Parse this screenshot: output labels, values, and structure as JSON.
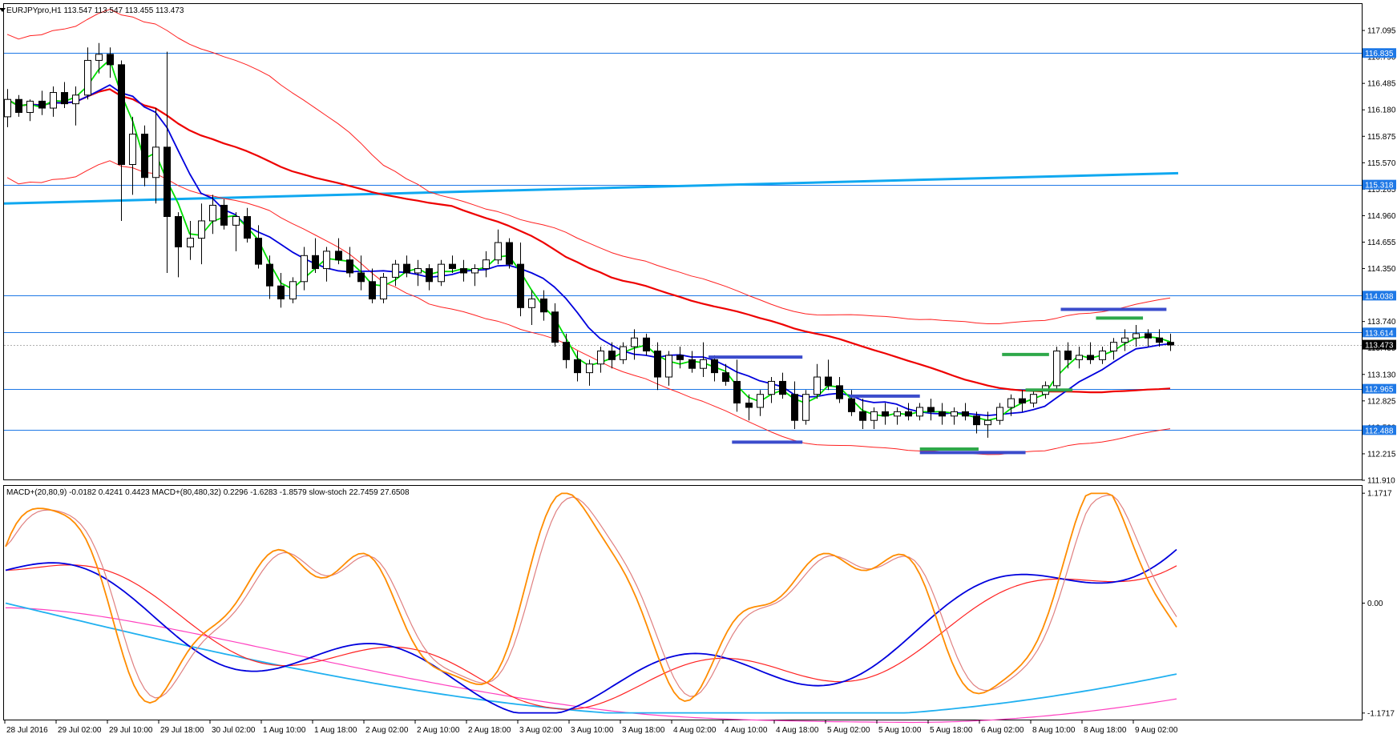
{
  "main_header": "EURJPYpro,H1  113.547 113.547 113.455 113.473",
  "indicator_header": "MACD+(20,80,9) -0.0182 0.4241 0.4423  MACD+(80,480,32) 0.2296 -1.6283 -1.8579  slow-stoch 22.7459 27.6508",
  "colors": {
    "candle_bull": "#ffffff",
    "candle_bear": "#000000",
    "ma_fast": "#00dd00",
    "ma_mid": "#0000dd",
    "ma_slow": "#ee0000",
    "band": "#ff2020",
    "trend": "#10a8f0",
    "hline": "#1e78e6",
    "tag_bg": "#1e78e6",
    "current_tag_bg": "#000000",
    "level_blue": "#3b4ccc",
    "level_green": "#2ea84a",
    "stoch": "#ff8c00",
    "stoch_signal": "#e08080",
    "macd_fast": "#0000dd",
    "macd_fast_signal": "#ff2020",
    "macd_slow": "#20b0f0",
    "macd_slow_signal": "#ff40c0"
  },
  "price_axis": {
    "min": 111.91,
    "max": 117.4,
    "ticks": [
      "117.095",
      "116.790",
      "116.485",
      "116.180",
      "115.875",
      "115.570",
      "115.265",
      "114.960",
      "114.655",
      "114.350",
      "114.045",
      "113.740",
      "113.435",
      "113.130",
      "112.825",
      "112.520",
      "112.215",
      "111.910"
    ]
  },
  "indicator_axis": {
    "min": -1.25,
    "max": 1.25,
    "ticks": [
      "1.1717",
      "0.00",
      "-1.1717"
    ]
  },
  "time_labels": [
    "28 Jul 2016",
    "29 Jul 02:00",
    "29 Jul 10:00",
    "29 Jul 18:00",
    "30 Jul 02:00",
    "1 Aug 10:00",
    "1 Aug 18:00",
    "2 Aug 02:00",
    "2 Aug 10:00",
    "2 Aug 18:00",
    "3 Aug 02:00",
    "3 Aug 10:00",
    "3 Aug 18:00",
    "4 Aug 02:00",
    "4 Aug 10:00",
    "4 Aug 18:00",
    "5 Aug 02:00",
    "5 Aug 10:00",
    "5 Aug 18:00",
    "6 Aug 02:00",
    "8 Aug 10:00",
    "8 Aug 18:00",
    "9 Aug 02:00"
  ],
  "price_levels": [
    {
      "price": 116.835,
      "label": "116.835"
    },
    {
      "price": 115.318,
      "label": "115.318"
    },
    {
      "price": 114.038,
      "label": "114.038"
    },
    {
      "price": 113.614,
      "label": "113.614"
    },
    {
      "price": 112.965,
      "label": "112.965"
    },
    {
      "price": 112.488,
      "label": "112.488"
    }
  ],
  "current_price": {
    "price": 113.473,
    "label": "113.473"
  },
  "chart_data": {
    "type": "candlestick",
    "symbol": "EURJPYpro",
    "timeframe": "H1",
    "candles": [
      [
        116.1,
        116.42,
        115.98,
        116.3
      ],
      [
        116.3,
        116.35,
        116.1,
        116.15
      ],
      [
        116.15,
        116.3,
        116.05,
        116.28
      ],
      [
        116.28,
        116.4,
        116.12,
        116.2
      ],
      [
        116.2,
        116.45,
        116.1,
        116.38
      ],
      [
        116.38,
        116.5,
        116.2,
        116.25
      ],
      [
        116.25,
        116.45,
        116.0,
        116.35
      ],
      [
        116.35,
        116.9,
        116.3,
        116.75
      ],
      [
        116.75,
        116.95,
        116.6,
        116.82
      ],
      [
        116.82,
        116.9,
        116.55,
        116.7
      ],
      [
        116.7,
        116.75,
        114.9,
        115.55
      ],
      [
        115.55,
        116.1,
        115.2,
        115.9
      ],
      [
        115.9,
        116.0,
        115.3,
        115.4
      ],
      [
        115.4,
        116.2,
        115.1,
        115.75
      ],
      [
        115.75,
        116.85,
        114.3,
        114.95
      ],
      [
        114.95,
        115.0,
        114.25,
        114.6
      ],
      [
        114.6,
        114.9,
        114.45,
        114.7
      ],
      [
        114.7,
        115.1,
        114.4,
        114.9
      ],
      [
        114.9,
        115.2,
        114.75,
        115.08
      ],
      [
        115.08,
        115.15,
        114.8,
        114.85
      ],
      [
        114.85,
        115.0,
        114.55,
        114.95
      ],
      [
        114.95,
        115.05,
        114.65,
        114.7
      ],
      [
        114.7,
        114.85,
        114.35,
        114.4
      ],
      [
        114.4,
        114.5,
        114.0,
        114.15
      ],
      [
        114.15,
        114.3,
        113.9,
        114.0
      ],
      [
        114.0,
        114.25,
        113.95,
        114.2
      ],
      [
        114.2,
        114.6,
        114.1,
        114.5
      ],
      [
        114.5,
        114.7,
        114.3,
        114.35
      ],
      [
        114.35,
        114.6,
        114.2,
        114.55
      ],
      [
        114.55,
        114.7,
        114.4,
        114.45
      ],
      [
        114.45,
        114.6,
        114.25,
        114.3
      ],
      [
        114.3,
        114.5,
        114.1,
        114.2
      ],
      [
        114.2,
        114.35,
        113.95,
        114.0
      ],
      [
        114.0,
        114.3,
        113.95,
        114.25
      ],
      [
        114.25,
        114.45,
        114.15,
        114.4
      ],
      [
        114.4,
        114.5,
        114.25,
        114.3
      ],
      [
        114.3,
        114.45,
        114.15,
        114.35
      ],
      [
        114.35,
        114.4,
        114.1,
        114.2
      ],
      [
        114.2,
        114.45,
        114.15,
        114.4
      ],
      [
        114.4,
        114.5,
        114.3,
        114.35
      ],
      [
        114.35,
        114.45,
        114.2,
        114.3
      ],
      [
        114.3,
        114.4,
        114.15,
        114.35
      ],
      [
        114.35,
        114.55,
        114.25,
        114.45
      ],
      [
        114.45,
        114.8,
        114.4,
        114.65
      ],
      [
        114.65,
        114.7,
        114.35,
        114.4
      ],
      [
        114.4,
        114.65,
        113.8,
        113.9
      ],
      [
        113.9,
        114.1,
        113.7,
        114.0
      ],
      [
        114.0,
        114.1,
        113.75,
        113.85
      ],
      [
        113.85,
        113.95,
        113.45,
        113.5
      ],
      [
        113.5,
        113.6,
        113.2,
        113.3
      ],
      [
        113.3,
        113.4,
        113.05,
        113.15
      ],
      [
        113.15,
        113.3,
        113.0,
        113.25
      ],
      [
        113.25,
        113.45,
        113.15,
        113.4
      ],
      [
        113.4,
        113.5,
        113.2,
        113.3
      ],
      [
        113.3,
        113.5,
        113.25,
        113.45
      ],
      [
        113.45,
        113.65,
        113.3,
        113.55
      ],
      [
        113.55,
        113.6,
        113.35,
        113.4
      ],
      [
        113.4,
        113.5,
        112.95,
        113.1
      ],
      [
        113.1,
        113.4,
        113.0,
        113.35
      ],
      [
        113.35,
        113.45,
        113.2,
        113.3
      ],
      [
        113.3,
        113.4,
        113.15,
        113.2
      ],
      [
        113.2,
        113.5,
        113.1,
        113.3
      ],
      [
        113.3,
        113.35,
        113.05,
        113.15
      ],
      [
        113.15,
        113.25,
        113.0,
        113.05
      ],
      [
        113.05,
        113.3,
        112.7,
        112.8
      ],
      [
        112.8,
        112.9,
        112.6,
        112.75
      ],
      [
        112.75,
        112.95,
        112.65,
        112.9
      ],
      [
        112.9,
        113.1,
        112.8,
        113.05
      ],
      [
        113.05,
        113.15,
        112.85,
        112.9
      ],
      [
        112.9,
        113.05,
        112.5,
        112.6
      ],
      [
        112.6,
        112.95,
        112.55,
        112.9
      ],
      [
        112.9,
        113.25,
        112.85,
        113.1
      ],
      [
        113.1,
        113.3,
        112.95,
        113.0
      ],
      [
        113.0,
        113.1,
        112.8,
        112.85
      ],
      [
        112.85,
        112.95,
        112.65,
        112.7
      ],
      [
        112.7,
        112.85,
        112.5,
        112.6
      ],
      [
        112.6,
        112.75,
        112.5,
        112.7
      ],
      [
        112.7,
        112.8,
        112.55,
        112.65
      ],
      [
        112.65,
        112.75,
        112.55,
        112.7
      ],
      [
        112.7,
        112.8,
        112.6,
        112.65
      ],
      [
        112.65,
        112.8,
        112.6,
        112.75
      ],
      [
        112.75,
        112.85,
        112.6,
        112.7
      ],
      [
        112.7,
        112.8,
        112.55,
        112.65
      ],
      [
        112.65,
        112.75,
        112.55,
        112.7
      ],
      [
        112.7,
        112.8,
        112.6,
        112.65
      ],
      [
        112.65,
        112.7,
        112.45,
        112.55
      ],
      [
        112.55,
        112.7,
        112.4,
        112.6
      ],
      [
        112.6,
        112.8,
        112.55,
        112.75
      ],
      [
        112.75,
        112.9,
        112.65,
        112.85
      ],
      [
        112.85,
        112.95,
        112.7,
        112.8
      ],
      [
        112.8,
        112.95,
        112.75,
        112.9
      ],
      [
        112.9,
        113.05,
        112.85,
        113.0
      ],
      [
        113.0,
        113.45,
        112.95,
        113.4
      ],
      [
        113.4,
        113.5,
        113.2,
        113.3
      ],
      [
        113.3,
        113.45,
        113.2,
        113.35
      ],
      [
        113.35,
        113.5,
        113.25,
        113.3
      ],
      [
        113.3,
        113.45,
        113.25,
        113.4
      ],
      [
        113.4,
        113.55,
        113.3,
        113.5
      ],
      [
        113.5,
        113.65,
        113.4,
        113.55
      ],
      [
        113.55,
        113.7,
        113.45,
        113.6
      ],
      [
        113.6,
        113.65,
        113.45,
        113.55
      ],
      [
        113.55,
        113.65,
        113.45,
        113.5
      ],
      [
        113.5,
        113.6,
        113.4,
        113.47
      ]
    ],
    "overlays": [
      "moving averages",
      "bands",
      "trend line"
    ],
    "indicators": [
      "MACD+(20,80,9)",
      "MACD+(80,480,32)",
      "slow-stoch"
    ]
  }
}
